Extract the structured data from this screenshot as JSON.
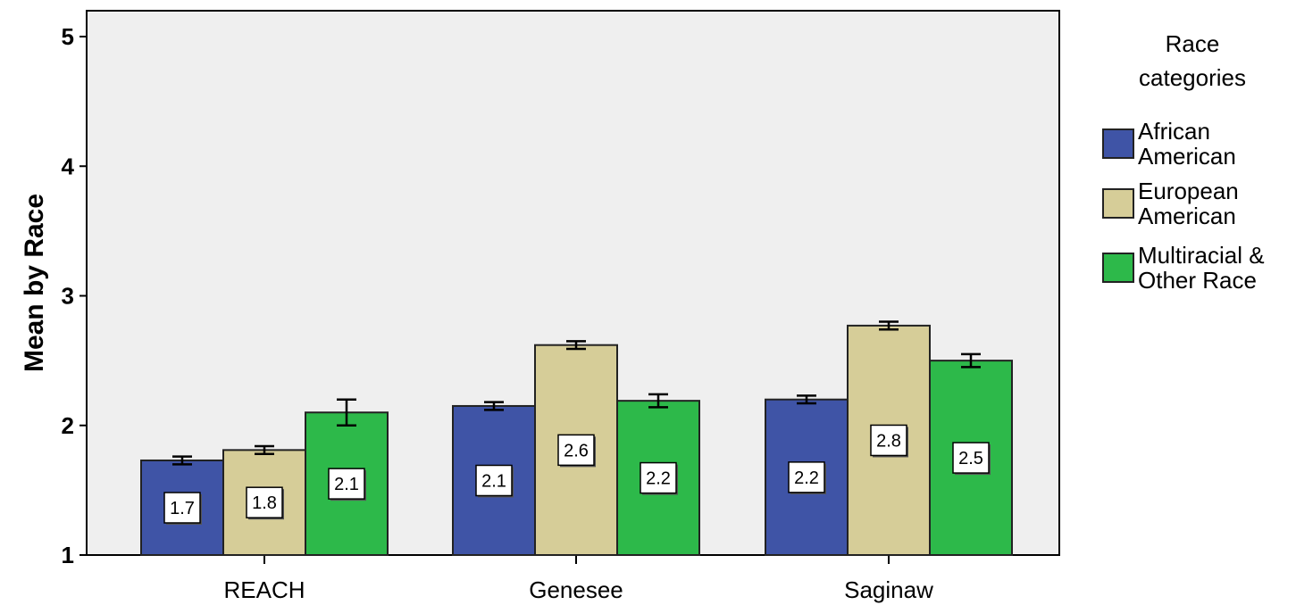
{
  "chart_data": {
    "type": "bar",
    "categories": [
      "REACH",
      "Genesee",
      "Saginaw"
    ],
    "ylabel": "Mean by Race",
    "xlabel": "",
    "ylim": [
      1,
      5
    ],
    "yticks": [
      "1",
      "2",
      "3",
      "4",
      "5"
    ],
    "legend": {
      "title": [
        "Race",
        "categories"
      ],
      "placement": "right"
    },
    "series": [
      {
        "name": [
          "African",
          "American"
        ],
        "color": "#3f54a6",
        "values": [
          1.73,
          2.15,
          2.2
        ],
        "errors": [
          0.03,
          0.03,
          0.03
        ],
        "labels": [
          "1.7",
          "2.1",
          "2.2"
        ]
      },
      {
        "name": [
          "European",
          "American"
        ],
        "color": "#d6cd98",
        "values": [
          1.81,
          2.62,
          2.77
        ],
        "errors": [
          0.03,
          0.03,
          0.03
        ],
        "labels": [
          "1.8",
          "2.6",
          "2.8"
        ]
      },
      {
        "name": [
          "Multiracial &",
          "Other Race"
        ],
        "color": "#2db94a",
        "values": [
          2.1,
          2.19,
          2.5
        ],
        "errors": [
          0.1,
          0.05,
          0.05
        ],
        "labels": [
          "2.1",
          "2.2",
          "2.5"
        ]
      }
    ],
    "plot_background": "#efefef",
    "grid": false
  }
}
